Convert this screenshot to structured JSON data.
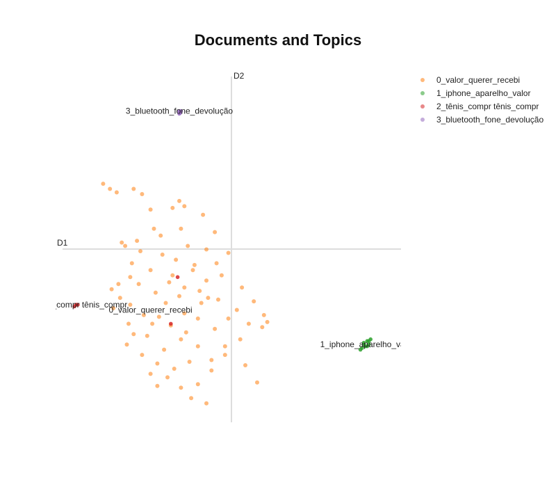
{
  "chart_data": {
    "type": "scatter",
    "title": "Documents and Topics",
    "xlabel": "D1",
    "ylabel": "D2",
    "xlim": [
      -10,
      10
    ],
    "ylim": [
      -10,
      10
    ],
    "grid": false,
    "legend_position": "top-right",
    "series": [
      {
        "name": "0_valor_querer_recebi",
        "color": "#ff7f0e",
        "label": "0_valor_querer_recebi",
        "label_at": [
          -4.8,
          -3.5
        ],
        "points": [
          [
            -3.5,
            -1.5
          ],
          [
            -2.8,
            -2.2
          ],
          [
            -3.9,
            -3.1
          ],
          [
            -2.0,
            -4.0
          ],
          [
            -4.5,
            -2.5
          ],
          [
            -5.2,
            -3.8
          ],
          [
            -3.0,
            -5.2
          ],
          [
            -1.8,
            -3.1
          ],
          [
            -4.0,
            -5.8
          ],
          [
            -2.5,
            -6.5
          ],
          [
            -5.8,
            -4.9
          ],
          [
            -1.0,
            -4.6
          ],
          [
            -3.3,
            -0.6
          ],
          [
            -4.8,
            -1.2
          ],
          [
            -2.2,
            -0.9
          ],
          [
            -5.5,
            -2.0
          ],
          [
            -6.0,
            -3.2
          ],
          [
            -1.5,
            -1.8
          ],
          [
            -0.8,
            -2.9
          ],
          [
            0.3,
            -3.5
          ],
          [
            1.0,
            -4.3
          ],
          [
            1.8,
            -4.5
          ],
          [
            0.5,
            -5.2
          ],
          [
            -0.4,
            -6.1
          ],
          [
            -1.2,
            -7.0
          ],
          [
            -2.0,
            -7.8
          ],
          [
            -3.8,
            -7.4
          ],
          [
            -4.8,
            -7.2
          ],
          [
            -5.3,
            -6.1
          ],
          [
            -6.2,
            -5.5
          ],
          [
            -5.6,
            0.5
          ],
          [
            -4.2,
            0.8
          ],
          [
            -3.0,
            1.2
          ],
          [
            -2.6,
            0.2
          ],
          [
            -1.0,
            1.0
          ],
          [
            -1.5,
            0.0
          ],
          [
            -0.9,
            -0.8
          ],
          [
            -4.6,
            1.2
          ],
          [
            -6.3,
            0.2
          ],
          [
            -5.9,
            -0.8
          ],
          [
            -2.0,
            -5.6
          ],
          [
            -0.2,
            -4.0
          ],
          [
            -3.6,
            -4.4
          ],
          [
            -2.8,
            -3.7
          ],
          [
            -4.3,
            -3.9
          ],
          [
            -3.1,
            -2.7
          ],
          [
            -1.9,
            -2.4
          ],
          [
            -5.0,
            -5.0
          ],
          [
            1.3,
            -3.0
          ],
          [
            0.6,
            -2.2
          ],
          [
            -0.6,
            -1.5
          ],
          [
            -6.6,
            -2.8
          ],
          [
            -6.1,
            -4.3
          ],
          [
            -7.0,
            -3.4
          ],
          [
            -2.4,
            -8.6
          ],
          [
            -1.5,
            -8.9
          ],
          [
            -1.7,
            2.0
          ],
          [
            -3.5,
            2.4
          ],
          [
            -4.8,
            2.3
          ],
          [
            -2.8,
            2.5
          ],
          [
            -7.6,
            3.8
          ],
          [
            -7.2,
            3.5
          ],
          [
            -6.8,
            3.3
          ],
          [
            -5.8,
            3.5
          ],
          [
            -5.3,
            3.2
          ],
          [
            -3.1,
            2.8
          ],
          [
            -6.5,
            0.4
          ],
          [
            -4.4,
            -6.6
          ],
          [
            1.9,
            -3.8
          ],
          [
            2.1,
            -4.2
          ],
          [
            -0.2,
            -0.2
          ],
          [
            -1.2,
            -6.4
          ],
          [
            -3.4,
            -6.9
          ],
          [
            -2.7,
            -4.8
          ],
          [
            -3.7,
            -1.9
          ],
          [
            -4.7,
            -4.3
          ],
          [
            0.8,
            -6.7
          ],
          [
            1.5,
            -7.7
          ],
          [
            -3.0,
            -8.0
          ],
          [
            -4.4,
            -7.9
          ],
          [
            -7.1,
            -2.3
          ],
          [
            -6.0,
            -1.6
          ],
          [
            -0.4,
            -5.6
          ],
          [
            -2.3,
            -1.2
          ],
          [
            -4.1,
            -0.3
          ],
          [
            -5.4,
            -0.1
          ],
          [
            -6.7,
            -2.0
          ],
          [
            -1.4,
            -2.8
          ]
        ]
      },
      {
        "name": "1_iphone_aparelho_valor",
        "color": "#2ca02c",
        "label": "1_iphone_aparelho_valor",
        "label_at": [
          8.0,
          -5.5
        ],
        "points": [
          [
            7.8,
            -5.4
          ],
          [
            8.0,
            -5.3
          ],
          [
            8.1,
            -5.5
          ],
          [
            7.9,
            -5.6
          ],
          [
            7.7,
            -5.7
          ],
          [
            8.2,
            -5.2
          ],
          [
            8.0,
            -5.6
          ],
          [
            7.8,
            -5.5
          ],
          [
            8.1,
            -5.3
          ],
          [
            7.6,
            -5.8
          ]
        ]
      },
      {
        "name": "2_tênis_compr tênis_compr",
        "color": "#d62728",
        "label": "2_tênis_compr tênis_compr",
        "label_at": [
          -9.2,
          -3.2
        ],
        "points": [
          [
            -9.2,
            -3.2
          ],
          [
            -9.1,
            -3.2
          ],
          [
            -9.3,
            -3.3
          ],
          [
            -3.2,
            -1.6
          ],
          [
            -3.6,
            -4.3
          ]
        ]
      },
      {
        "name": "3_bluetooth_fone_devolução",
        "color": "#9467bd",
        "label": "3_bluetooth_fone_devolução",
        "label_at": [
          -3.1,
          8.0
        ],
        "points": [
          [
            -3.1,
            8.0
          ],
          [
            -3.0,
            8.0
          ],
          [
            -3.05,
            7.9
          ],
          [
            -3.1,
            7.85
          ]
        ]
      }
    ]
  }
}
